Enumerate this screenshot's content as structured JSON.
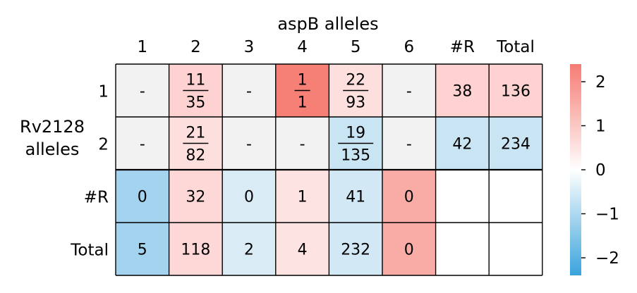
{
  "chart_data": {
    "type": "heatmap",
    "xlabel": "aspB alleles",
    "ylabel": "Rv2128\nalleles",
    "columns": [
      "1",
      "2",
      "3",
      "4",
      "5",
      "6",
      "#R",
      "Total"
    ],
    "rows": [
      "1",
      "2",
      "#R",
      "Total"
    ],
    "cells": [
      [
        {
          "text": "-",
          "color": "#f2f2f2"
        },
        {
          "num": "11",
          "den": "35",
          "color": "#fdd2d0"
        },
        {
          "text": "-",
          "color": "#f2f2f2"
        },
        {
          "num": "1",
          "den": "1",
          "color": "#f67f76"
        },
        {
          "num": "22",
          "den": "93",
          "color": "#fde0de"
        },
        {
          "text": "-",
          "color": "#f2f2f2"
        },
        {
          "text": "38",
          "color": "#fdd2d0"
        },
        {
          "text": "136",
          "color": "#fdd2d0"
        }
      ],
      [
        {
          "text": "-",
          "color": "#f2f2f2"
        },
        {
          "num": "21",
          "den": "82",
          "color": "#fde0de"
        },
        {
          "text": "-",
          "color": "#f2f2f2"
        },
        {
          "text": "-",
          "color": "#f2f2f2"
        },
        {
          "num": "19",
          "den": "135",
          "color": "#c9e5f4"
        },
        {
          "text": "-",
          "color": "#f2f2f2"
        },
        {
          "text": "42",
          "color": "#c9e5f4"
        },
        {
          "text": "234",
          "color": "#c9e5f4"
        }
      ],
      [
        {
          "text": "0",
          "color": "#a3d3ef"
        },
        {
          "text": "32",
          "color": "#fdd8d6"
        },
        {
          "text": "0",
          "color": "#d9ecf6"
        },
        {
          "text": "1",
          "color": "#fde3e2"
        },
        {
          "text": "41",
          "color": "#d2e8f5"
        },
        {
          "text": "0",
          "color": "#f9aca6"
        },
        {
          "text": "",
          "color": "#ffffff"
        },
        {
          "text": "",
          "color": "#ffffff"
        }
      ],
      [
        {
          "text": "5",
          "color": "#a3d3ef"
        },
        {
          "text": "118",
          "color": "#fdd8d6"
        },
        {
          "text": "2",
          "color": "#d9ecf6"
        },
        {
          "text": "4",
          "color": "#fde3e2"
        },
        {
          "text": "232",
          "color": "#d2e8f5"
        },
        {
          "text": "0",
          "color": "#f9aca6"
        },
        {
          "text": "",
          "color": "#ffffff"
        },
        {
          "text": "",
          "color": "#ffffff"
        }
      ]
    ],
    "colorbar": {
      "range": [
        -2.4,
        2.4
      ],
      "ticks": [
        "2",
        "1",
        "0",
        "−1",
        "−2"
      ],
      "tick_values": [
        2,
        1,
        0,
        -1,
        -2
      ],
      "colors": [
        "#3aa3dc",
        "#ffffff",
        "#f67b73"
      ]
    },
    "grid": true
  }
}
